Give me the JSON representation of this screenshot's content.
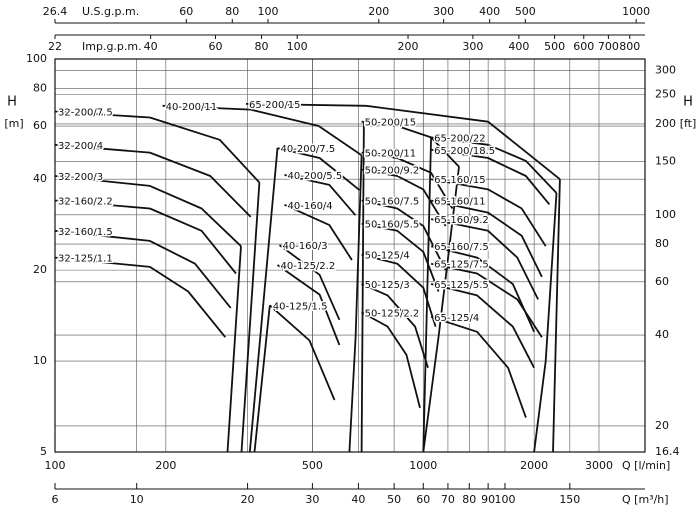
{
  "chart_data": {
    "type": "line",
    "log": true,
    "grid": true,
    "color": "#111111",
    "xlabel": "Q [l/min]",
    "x2label": "Q [m³/h]",
    "ylabel": "H",
    "yunit": "[m]",
    "y2label": "H",
    "y2unit": "[ft]",
    "toplabel": "U.S.g.p.m.",
    "top2label": "Imp.g.p.m.",
    "xlim": [
      100,
      4000
    ],
    "xticks": [
      100,
      200,
      500,
      1000,
      2000,
      3000
    ],
    "x2lim": [
      6,
      240
    ],
    "x2ticks": [
      6,
      10,
      20,
      30,
      40,
      50,
      60,
      70,
      80,
      90,
      100,
      150
    ],
    "toplim": [
      26.4,
      1056.8
    ],
    "topticks": [
      26.4,
      60,
      80,
      100,
      200,
      300,
      400,
      500,
      1000
    ],
    "top2lim": [
      22,
      880
    ],
    "top2ticks": [
      22,
      40,
      60,
      80,
      100,
      200,
      300,
      400,
      500,
      600,
      700,
      800
    ],
    "ylim": [
      5,
      100
    ],
    "yticks": [
      5,
      10,
      20,
      40,
      60,
      80,
      100
    ],
    "y2lim": [
      16.4,
      328
    ],
    "y2ticks": [
      16.4,
      20,
      40,
      60,
      80,
      100,
      150,
      200,
      250,
      300
    ],
    "series": [
      {
        "name": "32-200/7.5",
        "x": [
          100,
          181,
          280,
          359
        ],
        "values": [
          67,
          64,
          54,
          39
        ]
      },
      {
        "name": "32-200/4",
        "x": [
          100,
          181,
          264,
          340
        ],
        "values": [
          52,
          49,
          41,
          30
        ]
      },
      {
        "name": "32-200/3",
        "x": [
          100,
          181,
          250,
          320
        ],
        "values": [
          41,
          38,
          32,
          24
        ]
      },
      {
        "name": "32-160/2.2",
        "x": [
          100,
          181,
          250,
          310
        ],
        "values": [
          34,
          32,
          27,
          19.5
        ]
      },
      {
        "name": "32-160/1.5",
        "x": [
          100,
          181,
          240,
          300
        ],
        "values": [
          27,
          25,
          21,
          15
        ]
      },
      {
        "name": "32-125/1.1",
        "x": [
          100,
          181,
          230,
          290
        ],
        "values": [
          22,
          20.5,
          17,
          12
        ]
      },
      {
        "name": "40-200/11",
        "x": [
          196,
          340,
          520,
          680
        ],
        "values": [
          70,
          68,
          60,
          48
        ]
      },
      {
        "name": "40-200/7.5",
        "x": [
          402,
          523,
          671
        ],
        "values": [
          50.7,
          47,
          36.8
        ]
      },
      {
        "name": "40-200/5.5",
        "x": [
          420,
          556,
          654
        ],
        "values": [
          41.3,
          38.3,
          30.4
        ]
      },
      {
        "name": "40-160/4",
        "x": [
          420,
          556,
          640
        ],
        "values": [
          32.9,
          28.2,
          21.6
        ]
      },
      {
        "name": "40-160/3",
        "x": [
          407,
          523,
          592
        ],
        "values": [
          24.2,
          19.3,
          13.7
        ]
      },
      {
        "name": "40-125/2.2",
        "x": [
          402,
          523,
          592
        ],
        "values": [
          20.8,
          16.6,
          11.3
        ]
      },
      {
        "name": "40-125/1.5",
        "x": [
          383,
          491,
          574
        ],
        "values": [
          15.3,
          11.7,
          7.43
        ]
      },
      {
        "name": "50-200/15",
        "x": [
          680,
          850,
          1050,
          1250
        ],
        "values": [
          62,
          60,
          55,
          44
        ]
      },
      {
        "name": "50-200/11",
        "x": [
          680,
          850,
          1050,
          1200
        ],
        "values": [
          49,
          47,
          42,
          32
        ]
      },
      {
        "name": "50-200/9.2",
        "x": [
          680,
          850,
          1000,
          1150
        ],
        "values": [
          43,
          41,
          37,
          28
        ]
      },
      {
        "name": "50-160/7.5",
        "x": [
          680,
          850,
          1000,
          1150
        ],
        "values": [
          34,
          32,
          28,
          20
        ]
      },
      {
        "name": "50-160/5.5",
        "x": [
          680,
          850,
          1000,
          1100
        ],
        "values": [
          28.5,
          27,
          23,
          17
        ]
      },
      {
        "name": "50-125/4",
        "x": [
          680,
          850,
          1000,
          1080
        ],
        "values": [
          22.5,
          21,
          17.5,
          13
        ]
      },
      {
        "name": "50-125/3",
        "x": [
          680,
          800,
          950,
          1030
        ],
        "values": [
          18,
          16.5,
          13,
          9.5
        ]
      },
      {
        "name": "50-125/2.2",
        "x": [
          680,
          800,
          900,
          980
        ],
        "values": [
          14.5,
          13,
          10.5,
          7
        ]
      },
      {
        "name": "65-200/22",
        "x": [
          1050,
          1500,
          1900,
          2300
        ],
        "values": [
          55,
          52,
          46,
          36
        ]
      },
      {
        "name": "65-200/18.5",
        "x": [
          1050,
          1500,
          1900,
          2200
        ],
        "values": [
          50,
          47,
          41,
          33
        ]
      },
      {
        "name": "65-160/15",
        "x": [
          1050,
          1500,
          1850,
          2150
        ],
        "values": [
          40,
          37,
          32,
          24
        ]
      },
      {
        "name": "65-160/11",
        "x": [
          1050,
          1500,
          1850,
          2100
        ],
        "values": [
          34,
          31,
          26,
          19
        ]
      },
      {
        "name": "65-160/9.2",
        "x": [
          1050,
          1500,
          1800,
          2050
        ],
        "values": [
          29.5,
          27,
          22,
          16
        ]
      },
      {
        "name": "65-160/7.5",
        "x": [
          1050,
          1400,
          1750,
          2000
        ],
        "values": [
          24,
          22,
          18,
          12.5
        ]
      },
      {
        "name": "65-125/7.5",
        "x": [
          1050,
          1400,
          1800,
          2100
        ],
        "values": [
          21,
          19.5,
          16,
          12
        ]
      },
      {
        "name": "65-125/5.5",
        "x": [
          1050,
          1400,
          1750,
          2000
        ],
        "values": [
          18,
          16.5,
          13,
          9.5
        ]
      },
      {
        "name": "65-125/4",
        "x": [
          1050,
          1400,
          1700,
          1900
        ],
        "values": [
          14,
          12.5,
          9.5,
          6.5
        ]
      },
      {
        "name": "65-200/15",
        "x": [
          330,
          700,
          1500,
          2350
        ],
        "values": [
          71,
          70,
          62,
          40
        ]
      }
    ],
    "limits": [
      {
        "x": [
          359,
          321
        ],
        "values": [
          39,
          5
        ]
      },
      {
        "x": [
          320,
          294
        ],
        "values": [
          24,
          5
        ]
      },
      {
        "x": [
          402,
          338
        ],
        "values": [
          50.7,
          5
        ]
      },
      {
        "x": [
          383,
          348
        ],
        "values": [
          15.3,
          5
        ]
      },
      {
        "x": [
          680,
          655,
          630
        ],
        "values": [
          48,
          12,
          5
        ]
      },
      {
        "x": [
          690,
          680
        ],
        "values": [
          62,
          5
        ]
      },
      {
        "x": [
          1250,
          1100,
          1000
        ],
        "values": [
          44,
          12,
          5
        ]
      },
      {
        "x": [
          1050,
          1000
        ],
        "values": [
          55,
          5
        ]
      },
      {
        "x": [
          2300,
          2150,
          2000
        ],
        "values": [
          36,
          10,
          5
        ]
      },
      {
        "x": [
          2350,
          2250
        ],
        "values": [
          40,
          5
        ]
      }
    ]
  }
}
